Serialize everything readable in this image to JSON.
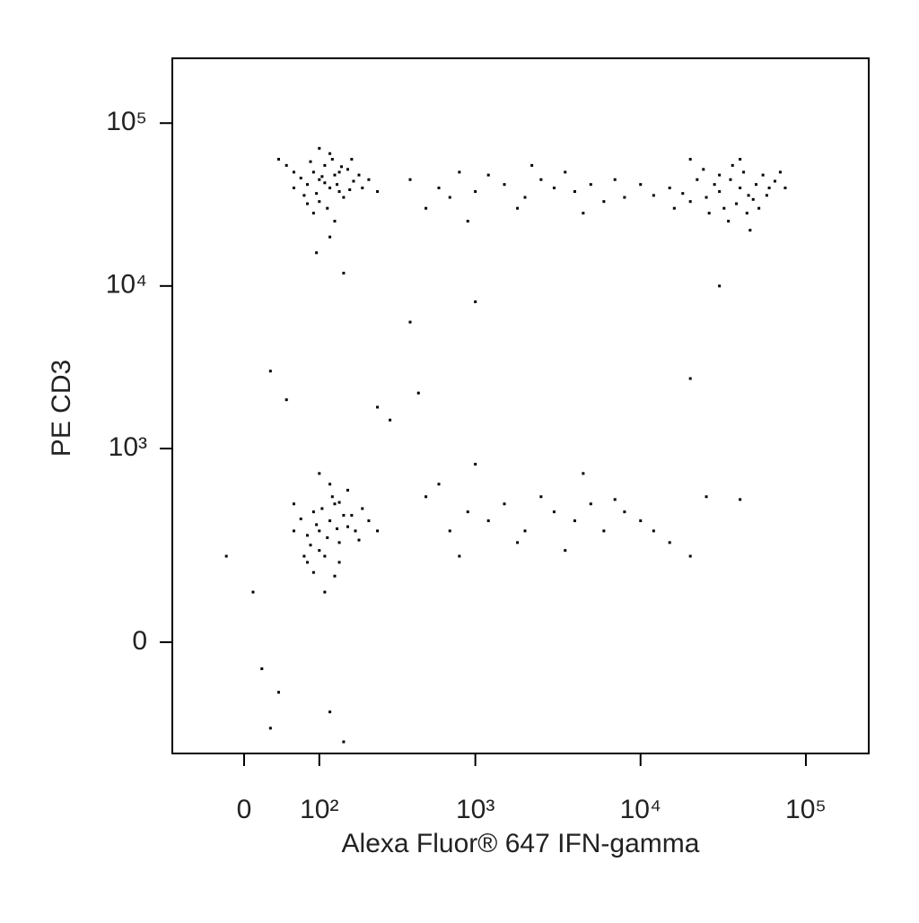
{
  "chart_data": {
    "type": "scatter",
    "xlabel": "Alexa Fluor® 647 IFN-gamma",
    "ylabel": "PE CD3",
    "xscale": "biexponential",
    "yscale": "biexponential",
    "color": "#000000",
    "xlim": [
      -94,
      240000
    ],
    "ylim": [
      -300,
      250000
    ],
    "xticks": [
      0,
      {
        "value": 100,
        "label": "10²"
      },
      {
        "value": 1000,
        "label": "10³"
      },
      {
        "value": 10000,
        "label": "10⁴"
      },
      {
        "value": 100000,
        "label": "10⁵"
      }
    ],
    "yticks": [
      0,
      {
        "value": 1000,
        "label": "10³"
      },
      {
        "value": 10000,
        "label": "10⁴"
      },
      {
        "value": 100000,
        "label": "10⁵"
      }
    ],
    "x": [
      100,
      120,
      90,
      140,
      110,
      80,
      130,
      150,
      70,
      160,
      100,
      125,
      95,
      175,
      60,
      200,
      115,
      85,
      135,
      105,
      145,
      75,
      190,
      120,
      90,
      165,
      110,
      50,
      220,
      130,
      100,
      140,
      80,
      170,
      60,
      250,
      120,
      95,
      150,
      40,
      30000,
      40000,
      25000,
      50000,
      35000,
      20000,
      45000,
      60000,
      28000,
      38000,
      15000,
      55000,
      32000,
      42000,
      18000,
      65000,
      22000,
      48000,
      12000,
      36000,
      26000,
      52000,
      10000,
      70000,
      30000,
      44000,
      16000,
      58000,
      24000,
      40000,
      8000,
      34000,
      75000,
      20000,
      46000,
      400,
      600,
      800,
      1000,
      1500,
      2000,
      2500,
      3000,
      4000,
      5000,
      6000,
      7000,
      500,
      1200,
      1800,
      3500,
      900,
      4500,
      2200,
      700,
      100,
      120,
      140,
      90,
      160,
      110,
      130,
      80,
      150,
      100,
      180,
      125,
      95,
      140,
      70,
      200,
      115,
      85,
      135,
      105,
      160,
      75,
      190,
      120,
      90,
      170,
      110,
      60,
      220,
      130,
      100,
      140,
      80,
      250,
      60,
      500,
      700,
      900,
      1200,
      1500,
      2000,
      2500,
      3000,
      4000,
      5000,
      6000,
      7000,
      8000,
      10000,
      12000,
      15000,
      20000,
      800,
      1800,
      3500,
      600,
      1000,
      4500,
      25000,
      40000,
      20,
      40,
      30,
      120,
      150,
      -20,
      10,
      30,
      50,
      300,
      450,
      250,
      400,
      20000,
      1000,
      30000
    ],
    "values": [
      45000,
      40000,
      50000,
      38000,
      55000,
      42000,
      48000,
      35000,
      46000,
      52000,
      33000,
      60000,
      37000,
      44000,
      50000,
      40000,
      30000,
      58000,
      42000,
      47000,
      54000,
      36000,
      48000,
      65000,
      28000,
      39000,
      43000,
      55000,
      45000,
      25000,
      70000,
      50000,
      32000,
      60000,
      40000,
      38000,
      20000,
      16000,
      12000,
      60000,
      38000,
      40000,
      35000,
      42000,
      45000,
      33000,
      36000,
      40000,
      42000,
      32000,
      40000,
      48000,
      30000,
      50000,
      37000,
      44000,
      45000,
      34000,
      36000,
      55000,
      28000,
      30000,
      42000,
      50000,
      48000,
      28000,
      30000,
      36000,
      52000,
      60000,
      35000,
      25000,
      40000,
      60000,
      22000,
      45000,
      40000,
      50000,
      38000,
      42000,
      35000,
      45000,
      40000,
      38000,
      42000,
      33000,
      45000,
      30000,
      48000,
      30000,
      50000,
      25000,
      28000,
      55000,
      35000,
      300,
      350,
      250,
      400,
      320,
      200,
      450,
      280,
      380,
      220,
      300,
      500,
      330,
      180,
      360,
      420,
      270,
      240,
      310,
      420,
      550,
      200,
      260,
      600,
      150,
      380,
      100,
      300,
      350,
      140,
      700,
      460,
      180,
      300,
      450,
      500,
      300,
      400,
      350,
      450,
      300,
      500,
      400,
      350,
      450,
      300,
      480,
      400,
      350,
      300,
      250,
      200,
      200,
      250,
      220,
      600,
      800,
      700,
      500,
      480,
      -50,
      -100,
      -200,
      -150,
      -250,
      200,
      100,
      3000,
      2000,
      1500,
      2200,
      1800,
      6000,
      2700,
      8000,
      10000
    ]
  }
}
